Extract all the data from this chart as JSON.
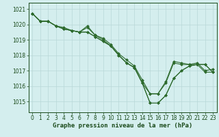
{
  "x": [
    0,
    1,
    2,
    3,
    4,
    5,
    6,
    7,
    8,
    9,
    10,
    11,
    12,
    13,
    14,
    15,
    16,
    17,
    18,
    19,
    20,
    21,
    22,
    23
  ],
  "series": [
    [
      1020.7,
      1020.2,
      1020.2,
      1019.9,
      1019.7,
      1019.6,
      1019.5,
      1019.8,
      1019.3,
      1019.0,
      1018.6,
      1018.0,
      1017.5,
      1017.2,
      1016.2,
      1015.5,
      1015.5,
      1016.2,
      1017.5,
      1017.4,
      1017.4,
      1017.4,
      1016.9,
      1016.9
    ],
    [
      1020.7,
      1020.2,
      1020.2,
      1019.9,
      1019.7,
      1019.6,
      1019.5,
      1019.9,
      1019.3,
      1019.1,
      1018.7,
      1018.1,
      1017.7,
      1017.3,
      1016.4,
      1015.5,
      1015.5,
      1016.3,
      1017.6,
      1017.5,
      1017.4,
      1017.5,
      1017.0,
      1017.1
    ],
    [
      1020.7,
      1020.2,
      1020.2,
      1019.9,
      1019.7,
      1019.6,
      1019.5,
      1019.5,
      1019.2,
      1018.9,
      1018.6,
      1018.0,
      1017.5,
      1017.2,
      1016.2,
      1014.9,
      1014.9,
      1015.4,
      1016.5,
      1017.0,
      1017.3,
      1017.4,
      1017.4,
      1016.9
    ],
    [
      1020.7,
      1020.2,
      1020.2,
      1019.9,
      1019.8,
      1019.6,
      1019.5,
      1019.5,
      1019.2,
      1018.9,
      1018.6,
      1018.0,
      1017.5,
      1017.2,
      1016.2,
      1014.9,
      1014.9,
      1015.4,
      1016.5,
      1017.0,
      1017.3,
      1017.4,
      1017.4,
      1016.9
    ]
  ],
  "line_color": "#2d6a2d",
  "marker": "D",
  "marker_size": 2.0,
  "bg_color": "#d4eeee",
  "grid_color": "#b8d8d8",
  "text_color": "#1a4a1a",
  "xlabel": "Graphe pression niveau de la mer (hPa)",
  "ylim": [
    1014.3,
    1021.4
  ],
  "xlim": [
    -0.5,
    23.5
  ],
  "yticks": [
    1015,
    1016,
    1017,
    1018,
    1019,
    1020,
    1021
  ],
  "xticks": [
    0,
    1,
    2,
    3,
    4,
    5,
    6,
    7,
    8,
    9,
    10,
    11,
    12,
    13,
    14,
    15,
    16,
    17,
    18,
    19,
    20,
    21,
    22,
    23
  ],
  "xlabel_fontsize": 6.5,
  "tick_fontsize": 5.5
}
